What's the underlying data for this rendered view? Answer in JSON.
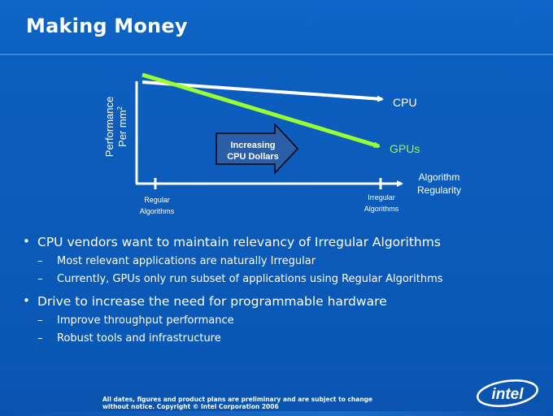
{
  "slide": {
    "title": "Making Money"
  },
  "diagram": {
    "y_axis_label_line1": "Performance",
    "y_axis_label_line2": "Per mm",
    "y_axis_label_superscript": "2",
    "x_axis_label_line1": "Algorithm",
    "x_axis_label_line2": "Regularity",
    "tick_left_line1": "Regular",
    "tick_left_line2": "Algorithms",
    "tick_right_line1": "Irregular",
    "tick_right_line2": "Algorithms",
    "cpu_label": "CPU",
    "gpu_label": "GPUs",
    "arrow_line1": "Increasing",
    "arrow_line2": "CPU Dollars",
    "colors": {
      "cpu_line": "#ffffff",
      "gpu_line": "#99ff33",
      "arrow_fill": "#2a5fa8"
    }
  },
  "bullets": [
    {
      "text": "CPU vendors want to maintain relevancy of Irregular Algorithms",
      "sub": [
        "Most relevant applications are naturally Irregular",
        "Currently, GPUs only run subset of applications using Regular Algorithms"
      ]
    },
    {
      "text": "Drive to increase the need for programmable hardware",
      "sub": [
        "Improve throughput performance",
        "Robust tools and infrastructure"
      ]
    }
  ],
  "sub_marker": "–",
  "footer": {
    "disclaimer_line1": "All dates, figures and product plans are preliminary and are subject to change",
    "disclaimer_line2": "without notice.   Copyright © Intel Corporation 2006",
    "logo_text": "intel"
  }
}
